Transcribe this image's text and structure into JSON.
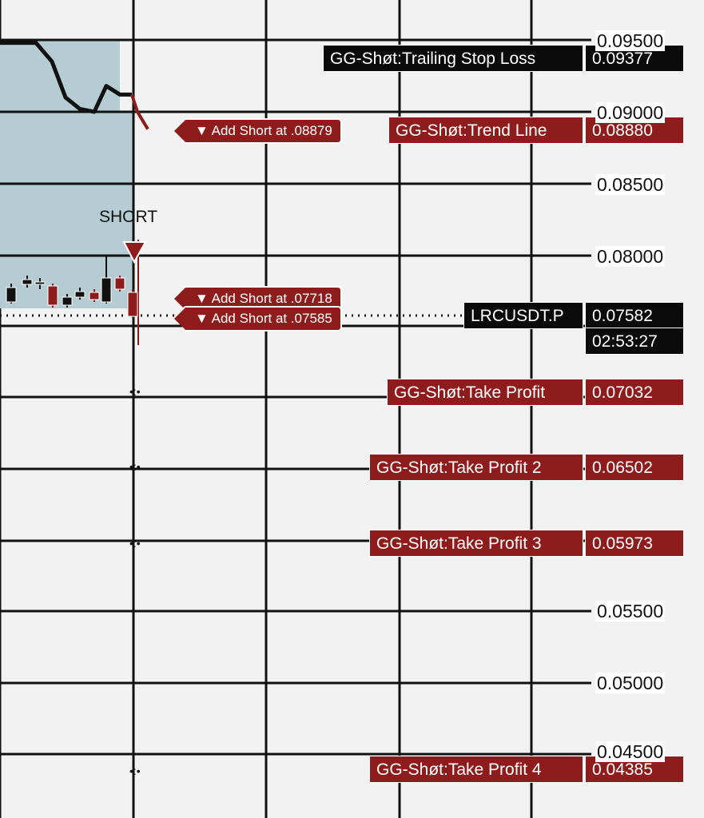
{
  "chart_data": {
    "type": "line",
    "symbol": "LRCUSDT.P",
    "price_axis": [
      "0.09500",
      "0.09000",
      "0.08500",
      "0.08000",
      "0.05500",
      "0.05000",
      "0.04500"
    ],
    "price_line": [
      0.0948,
      0.0948,
      0.0935,
      0.091,
      0.0902,
      0.09,
      0.0918,
      0.0912,
      0.0912,
      0.09,
      0.0888
    ],
    "signal": "SHORT",
    "current_price": {
      "label": "LRCUSDT.P",
      "value": "0.07582",
      "countdown": "02:53:27"
    },
    "levels": [
      {
        "id": "tsl",
        "name": "GG-Shøt:Trailing Stop Loss",
        "value": "0.09377",
        "style": "dark"
      },
      {
        "id": "trend",
        "name": "GG-Shøt:Trend Line",
        "value": "0.08880",
        "style": "red"
      },
      {
        "id": "tp1",
        "name": "GG-Shøt:Take Profit",
        "value": "0.07032",
        "style": "red"
      },
      {
        "id": "tp2",
        "name": "GG-Shøt:Take Profit 2",
        "value": "0.06502",
        "style": "red"
      },
      {
        "id": "tp3",
        "name": "GG-Shøt:Take Profit 3",
        "value": "0.05973",
        "style": "red"
      },
      {
        "id": "tp4",
        "name": "GG-Shøt:Take Profit 4",
        "value": "0.04385",
        "style": "red"
      }
    ],
    "add_short_labels": [
      "▼ Add Short at .08879",
      "▼ Add Short at .07718",
      "▼ Add Short at .07585"
    ]
  },
  "colors": {
    "background": "#f2f2f2",
    "grid": "#111111",
    "bearish": "#8e1c1c",
    "zone": "#b5ccd2",
    "price_line": "#111111"
  }
}
